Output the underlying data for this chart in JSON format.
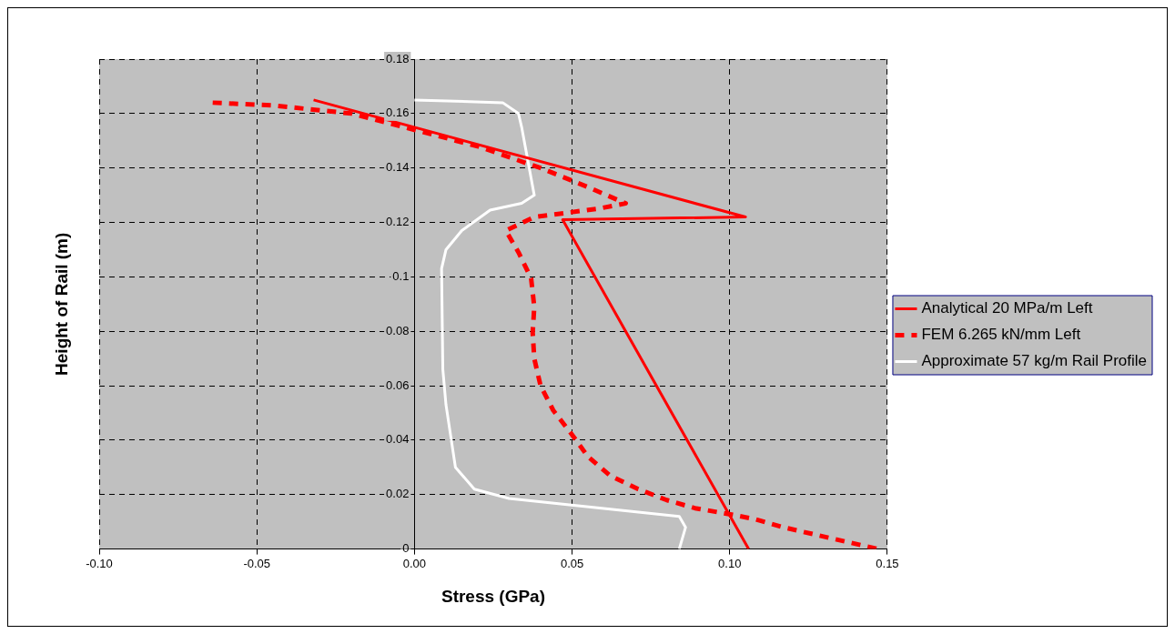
{
  "chart_data": {
    "type": "line",
    "xlabel": "Stress (GPa)",
    "ylabel": "Height of Rail (m)",
    "xlim": [
      -0.1,
      0.15
    ],
    "ylim": [
      0,
      0.18
    ],
    "xticks": [
      {
        "value": -0.1,
        "label": "-0.10"
      },
      {
        "value": -0.05,
        "label": "-0.05"
      },
      {
        "value": 0,
        "label": "0.00"
      },
      {
        "value": 0.05,
        "label": "0.05"
      },
      {
        "value": 0.1,
        "label": "0.10"
      },
      {
        "value": 0.15,
        "label": "0.15"
      }
    ],
    "yticks": [
      0,
      0.02,
      0.04,
      0.06,
      0.08,
      0.1,
      0.12,
      0.14,
      0.16,
      0.18
    ],
    "grid": true,
    "legend": "right",
    "marker": "none",
    "series": [
      {
        "name": "Analytical 20 MPa/m Left",
        "color": "#ff0000",
        "line_style": "solid",
        "x": [
          -0.032,
          0.105,
          0.047,
          0.106
        ],
        "values": [
          0.165,
          0.122,
          0.121,
          0
        ]
      },
      {
        "name": "FEM 6.265 kN/mm Left",
        "color": "#ff0000",
        "line_style": "dashed",
        "x": [
          -0.064,
          -0.045,
          -0.02,
          0,
          0.02,
          0.04,
          0.055,
          0.067,
          0.058,
          0.048,
          0.038,
          0.029,
          0.033,
          0.037,
          0.038,
          0.0375,
          0.038,
          0.04,
          0.044,
          0.05,
          0.055,
          0.062,
          0.071,
          0.08,
          0.089,
          0.099,
          0.108,
          0.117,
          0.147
        ],
        "values": [
          0.164,
          0.163,
          0.16,
          0.154,
          0.148,
          0.14,
          0.133,
          0.127,
          0.125,
          0.1235,
          0.122,
          0.117,
          0.109,
          0.0995,
          0.089,
          0.0795,
          0.07,
          0.06,
          0.051,
          0.042,
          0.034,
          0.027,
          0.022,
          0.018,
          0.015,
          0.013,
          0.011,
          0.008,
          0
        ]
      },
      {
        "name": "Approximate 57 kg/m Rail Profile",
        "color": "#ffffff",
        "line_style": "solid",
        "x": [
          0,
          0.028,
          0.033,
          0.034,
          0.038,
          0.034,
          0.024,
          0.015,
          0.01,
          0.0086,
          0.009,
          0.01,
          0.013,
          0.019,
          0.03,
          0.084,
          0.086,
          0.085,
          0.084
        ],
        "values": [
          0.165,
          0.164,
          0.16,
          0.155,
          0.13,
          0.127,
          0.1245,
          0.117,
          0.11,
          0.103,
          0.066,
          0.053,
          0.03,
          0.022,
          0.0186,
          0.012,
          0.008,
          0.004,
          0
        ]
      }
    ]
  }
}
